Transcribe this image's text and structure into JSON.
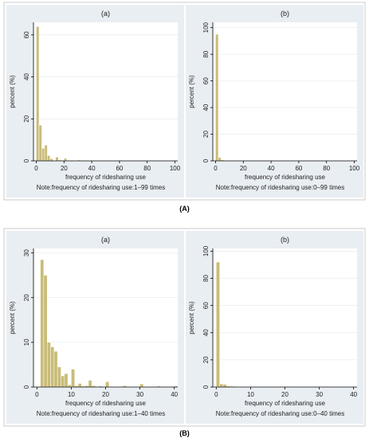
{
  "figure_labels": [
    "(A)",
    "(B)"
  ],
  "chart_data": [
    {
      "type": "bar",
      "title": "(a)",
      "xlabel": "frequency of ridesharing use",
      "ylabel": "percent (%)",
      "note": "Note:frequency of ridesharing use:1–99 times",
      "xlim": [
        -2,
        102
      ],
      "ylim": [
        0,
        66
      ],
      "xticks": [
        0,
        20,
        40,
        60,
        80,
        100
      ],
      "yticks": [
        0,
        20,
        40,
        60
      ],
      "bin_width": 2,
      "bins": [
        {
          "x": 0,
          "value": 64
        },
        {
          "x": 2,
          "value": 17
        },
        {
          "x": 4,
          "value": 6
        },
        {
          "x": 6,
          "value": 7.5
        },
        {
          "x": 8,
          "value": 2.5
        },
        {
          "x": 10,
          "value": 1
        },
        {
          "x": 14,
          "value": 1.8
        },
        {
          "x": 16,
          "value": 0.4
        },
        {
          "x": 18,
          "value": 0.3
        },
        {
          "x": 20,
          "value": 1.2
        },
        {
          "x": 24,
          "value": 0.3
        },
        {
          "x": 30,
          "value": 0.4
        },
        {
          "x": 40,
          "value": 0.3
        },
        {
          "x": 50,
          "value": 0.2
        },
        {
          "x": 60,
          "value": 0.3
        },
        {
          "x": 80,
          "value": 0.2
        },
        {
          "x": 98,
          "value": 0.2
        }
      ]
    },
    {
      "type": "bar",
      "title": "(b)",
      "xlabel": "frequency of ridesharing use",
      "ylabel": "percent (%)",
      "note": "Note:frequency of ridesharing use:0–99 times",
      "xlim": [
        -2,
        102
      ],
      "ylim": [
        0,
        104
      ],
      "xticks": [
        0,
        20,
        40,
        60,
        80,
        100
      ],
      "yticks": [
        0,
        20,
        40,
        60,
        80,
        100
      ],
      "bin_width": 2,
      "bins": [
        {
          "x": 0,
          "value": 95
        },
        {
          "x": 2,
          "value": 2.5
        },
        {
          "x": 4,
          "value": 0.8
        },
        {
          "x": 6,
          "value": 0.5
        },
        {
          "x": 8,
          "value": 0.3
        },
        {
          "x": 14,
          "value": 0.2
        },
        {
          "x": 20,
          "value": 0.2
        }
      ]
    },
    {
      "type": "bar",
      "title": "(a)",
      "xlabel": "frequency of ridesharing use",
      "ylabel": "percent (%)",
      "note": "Note:frequency of ridesharing use:1–40 times",
      "xlim": [
        -1,
        41
      ],
      "ylim": [
        0,
        31
      ],
      "xticks": [
        0,
        10,
        20,
        30,
        40
      ],
      "yticks": [
        0,
        10,
        20,
        30
      ],
      "bin_width": 1,
      "bins": [
        {
          "x": 1,
          "value": 28.5
        },
        {
          "x": 2,
          "value": 25
        },
        {
          "x": 3,
          "value": 10
        },
        {
          "x": 4,
          "value": 9
        },
        {
          "x": 5,
          "value": 8
        },
        {
          "x": 6,
          "value": 4.5
        },
        {
          "x": 7,
          "value": 2.5
        },
        {
          "x": 8,
          "value": 3
        },
        {
          "x": 9,
          "value": 0.5
        },
        {
          "x": 10,
          "value": 4
        },
        {
          "x": 11,
          "value": 0.3
        },
        {
          "x": 12,
          "value": 0.8
        },
        {
          "x": 13,
          "value": 0.2
        },
        {
          "x": 14,
          "value": 0.3
        },
        {
          "x": 15,
          "value": 1.5
        },
        {
          "x": 16,
          "value": 0.3
        },
        {
          "x": 18,
          "value": 0.2
        },
        {
          "x": 20,
          "value": 1.2
        },
        {
          "x": 25,
          "value": 0.3
        },
        {
          "x": 30,
          "value": 0.7
        },
        {
          "x": 35,
          "value": 0.2
        },
        {
          "x": 40,
          "value": 0.2
        }
      ]
    },
    {
      "type": "bar",
      "title": "(b)",
      "xlabel": "frequency of ridesharing use",
      "ylabel": "percent (%)",
      "note": "Note:frequency of ridesharing use:0–40 times",
      "xlim": [
        -1,
        41
      ],
      "ylim": [
        0,
        102
      ],
      "xticks": [
        0,
        10,
        20,
        30,
        40
      ],
      "yticks": [
        0,
        20,
        40,
        60,
        80,
        100
      ],
      "bin_width": 1,
      "bins": [
        {
          "x": 0,
          "value": 92
        },
        {
          "x": 1,
          "value": 2.3
        },
        {
          "x": 2,
          "value": 2
        },
        {
          "x": 3,
          "value": 0.8
        },
        {
          "x": 4,
          "value": 0.6
        },
        {
          "x": 5,
          "value": 0.5
        },
        {
          "x": 6,
          "value": 0.3
        },
        {
          "x": 8,
          "value": 0.2
        },
        {
          "x": 10,
          "value": 0.3
        },
        {
          "x": 15,
          "value": 0.2
        },
        {
          "x": 20,
          "value": 0.2
        },
        {
          "x": 30,
          "value": 0.1
        }
      ]
    }
  ]
}
